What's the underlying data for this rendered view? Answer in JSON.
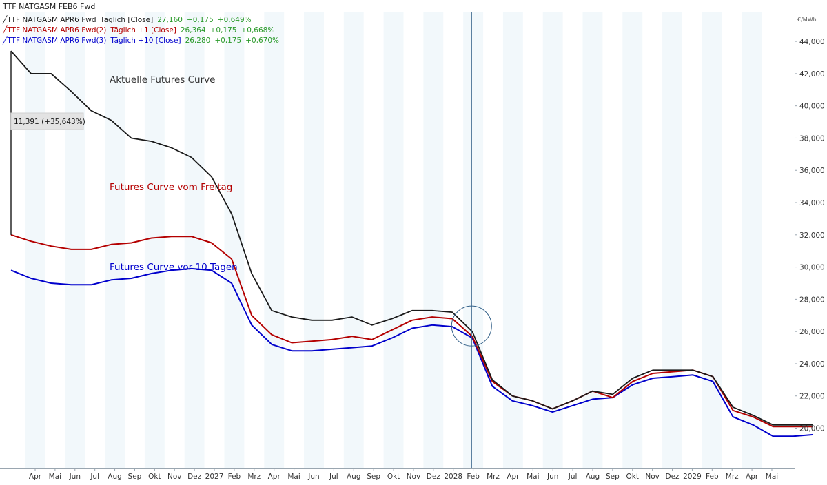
{
  "page_title": "TTF NATGASM FEB6 Fwd",
  "legend": [
    {
      "name": "TTF NATGASM APR6 Fwd",
      "period": "Täglich [Close]",
      "last": "27,160",
      "change": "+0,175",
      "pct": "+0,649%",
      "color": "#1a1a1a"
    },
    {
      "name": "TTF NATGASM APR6 Fwd(2)",
      "period": "Täglich +1 [Close]",
      "last": "26,364",
      "change": "+0,175",
      "pct": "+0,668%",
      "color": "#b40000"
    },
    {
      "name": "TTF NATGASM APR6 Fwd(3)",
      "period": "Täglich +10 [Close]",
      "last": "26,280",
      "change": "+0,175",
      "pct": "+0,670%",
      "color": "#0000cc"
    }
  ],
  "annotations": {
    "current": "Aktuelle Futures Curve",
    "friday": "Futures Curve vom Freitag",
    "ten_days": "Futures Curve vor 10 Tagen",
    "diff_box": "11,391 (+35,643%)"
  },
  "colors": {
    "current": "#1a1a1a",
    "friday": "#b40000",
    "ten_days": "#0000cc",
    "green": "#2a9a2a",
    "stripe": "#f2f8fb",
    "crosshair": "#35628a"
  },
  "chart_data": {
    "type": "line",
    "title": "TTF NATGASM FEB6 Fwd",
    "y_unit": "€/MWh",
    "ylim": [
      17.5,
      45.8
    ],
    "y_ticks": [
      20,
      22,
      24,
      26,
      28,
      30,
      32,
      34,
      36,
      38,
      40,
      42,
      44
    ],
    "y_tick_labels": [
      "20,000",
      "22,000",
      "24,000",
      "26,000",
      "28,000",
      "30,000",
      "32,000",
      "34,000",
      "36,000",
      "38,000",
      "40,000",
      "42,000",
      "44,000"
    ],
    "x_labels": [
      "Apr",
      "Mai",
      "Jun",
      "Jul",
      "Aug",
      "Sep",
      "Okt",
      "Nov",
      "Dez",
      "2027",
      "Feb",
      "Mrz",
      "Apr",
      "Mai",
      "Jun",
      "Jul",
      "Aug",
      "Sep",
      "Okt",
      "Nov",
      "Dez",
      "2028",
      "Feb",
      "Mrz",
      "Apr",
      "Mai",
      "Jun",
      "Jul",
      "Aug",
      "Sep",
      "Okt",
      "Nov",
      "Dez",
      "2029",
      "Feb",
      "Mrz",
      "Apr",
      "Mai"
    ],
    "crosshair_index": 23,
    "series": [
      {
        "name": "Aktuelle Futures Curve",
        "key": "current",
        "start_value": 43.4,
        "values": [
          43.4,
          42.0,
          42.0,
          40.9,
          39.7,
          39.1,
          38.0,
          37.8,
          37.4,
          36.8,
          35.6,
          33.3,
          29.6,
          27.3,
          26.9,
          26.7,
          26.7,
          26.9,
          26.4,
          26.8,
          27.3,
          27.3,
          27.2,
          26.0,
          23.0,
          22.0,
          21.7,
          21.2,
          21.7,
          22.3,
          22.1,
          23.1,
          23.6,
          23.6,
          23.6,
          23.2,
          21.3,
          20.8,
          20.2,
          20.2,
          20.2
        ]
      },
      {
        "name": "Futures Curve vom Freitag",
        "key": "friday",
        "start_value": 32.0,
        "values": [
          32.0,
          31.6,
          31.3,
          31.1,
          31.1,
          31.4,
          31.5,
          31.8,
          31.9,
          31.9,
          31.5,
          30.5,
          27.0,
          25.8,
          25.3,
          25.4,
          25.5,
          25.7,
          25.5,
          26.1,
          26.7,
          26.9,
          26.8,
          25.7,
          22.9,
          22.0,
          21.7,
          21.2,
          21.7,
          22.3,
          21.9,
          22.9,
          23.4,
          23.5,
          23.6,
          23.2,
          21.1,
          20.7,
          20.1,
          20.1,
          20.1
        ]
      },
      {
        "name": "Futures Curve vor 10 Tagen",
        "key": "ten_days",
        "start_value": 29.8,
        "values": [
          29.8,
          29.3,
          29.0,
          28.9,
          28.9,
          29.2,
          29.3,
          29.6,
          29.8,
          29.9,
          29.8,
          29.0,
          26.4,
          25.2,
          24.8,
          24.8,
          24.9,
          25.0,
          25.1,
          25.6,
          26.2,
          26.4,
          26.3,
          25.6,
          22.6,
          21.7,
          21.4,
          21.0,
          21.4,
          21.8,
          21.9,
          22.7,
          23.1,
          23.2,
          23.3,
          22.9,
          20.7,
          20.2,
          19.5,
          19.5,
          19.6
        ]
      }
    ]
  }
}
